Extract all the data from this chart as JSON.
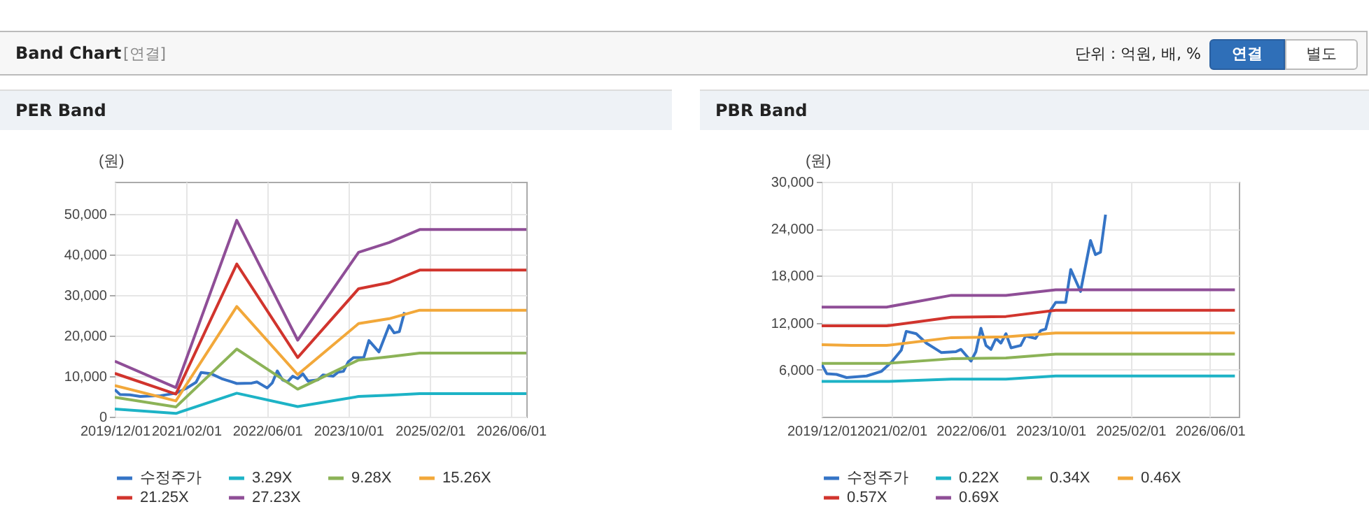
{
  "chart_data": [
    {
      "type": "other",
      "title": "Band Chart",
      "annotations": [
        "[연결]",
        "단위 : 억원, 배, %",
        "연결",
        "별도"
      ]
    },
    {
      "type": "line",
      "title": "PER Band",
      "ylabel": "(원)",
      "xlim": [
        "2019-12-01",
        "2026-09-01"
      ],
      "ylim": [
        0,
        58000
      ],
      "xticks": [
        {
          "value": "2019-12-01",
          "label": "2019/12/01"
        },
        {
          "value": "2021-02-01",
          "label": "2021/02/01"
        },
        {
          "value": "2022-06-01",
          "label": "2022/06/01"
        },
        {
          "value": "2023-10-01",
          "label": "2023/10/01"
        },
        {
          "value": "2025-02-01",
          "label": "2025/02/01"
        },
        {
          "value": "2026-06-01",
          "label": "2026/06/01"
        }
      ],
      "yticks": [
        0,
        {
          "value": 10000,
          "label": "10,000"
        },
        {
          "value": 20000,
          "label": "20,000"
        },
        {
          "value": 30000,
          "label": "30,000"
        },
        {
          "value": 40000,
          "label": "40,000"
        },
        {
          "value": 50000,
          "label": "50,000"
        }
      ],
      "grid": true,
      "legend": "bottom",
      "series": [
        {
          "name": "수정주가",
          "color": "#3574c6",
          "x": [
            "2019-12",
            "2020-01",
            "2020-03",
            "2020-05",
            "2020-09",
            "2020-12",
            "2021-02",
            "2021-04",
            "2021-05",
            "2021-07",
            "2021-09",
            "2021-11",
            "2021-12",
            "2022-03",
            "2022-04",
            "2022-06",
            "2022-07",
            "2022-08",
            "2022-09",
            "2022-10",
            "2022-11",
            "2022-12",
            "2023-01",
            "2023-02",
            "2023-04",
            "2023-05",
            "2023-07",
            "2023-08",
            "2023-09",
            "2023-10",
            "2023-11",
            "2024-01",
            "2024-02",
            "2024-04",
            "2024-06",
            "2024-07",
            "2024-08",
            "2024-09"
          ],
          "values": [
            6700,
            5500,
            5400,
            5000,
            5200,
            5800,
            7000,
            8500,
            10900,
            10600,
            9400,
            8600,
            8200,
            8300,
            8600,
            7100,
            8300,
            11300,
            9100,
            8600,
            10000,
            9400,
            10600,
            8800,
            9100,
            10300,
            10000,
            11000,
            11200,
            13600,
            14600,
            14600,
            18800,
            16000,
            22500,
            20700,
            21000,
            25800
          ]
        },
        {
          "name": "3.29X",
          "color": "#1db3c6",
          "x": [
            "2019-12",
            "2020-12",
            "2021-12",
            "2022-12",
            "2023-12",
            "2024-06",
            "2024-12",
            "2026-09"
          ],
          "values": [
            1900,
            800,
            5800,
            2500,
            5000,
            5300,
            5700,
            5700
          ]
        },
        {
          "name": "9.28X",
          "color": "#8cb357",
          "x": [
            "2019-12",
            "2020-12",
            "2021-12",
            "2022-12",
            "2023-12",
            "2024-06",
            "2024-12",
            "2026-09"
          ],
          "values": [
            4800,
            2400,
            16700,
            6800,
            14000,
            14800,
            15700,
            15700
          ]
        },
        {
          "name": "15.26X",
          "color": "#f2a83a",
          "x": [
            "2019-12",
            "2020-12",
            "2021-12",
            "2022-12",
            "2023-12",
            "2024-06",
            "2024-12",
            "2026-09"
          ],
          "values": [
            7700,
            3900,
            27200,
            10400,
            23000,
            24200,
            26300,
            26300
          ]
        },
        {
          "name": "21.25X",
          "color": "#d1342d",
          "x": [
            "2019-12",
            "2020-12",
            "2021-12",
            "2022-12",
            "2023-12",
            "2024-06",
            "2024-12",
            "2026-09"
          ],
          "values": [
            10700,
            5600,
            37700,
            14600,
            31600,
            33100,
            36200,
            36200
          ]
        },
        {
          "name": "27.23X",
          "color": "#8f4e97",
          "x": [
            "2019-12",
            "2020-12",
            "2021-12",
            "2022-12",
            "2023-12",
            "2024-06",
            "2024-12",
            "2026-09"
          ],
          "values": [
            13700,
            7200,
            48500,
            18900,
            40600,
            43000,
            46200,
            46200
          ]
        }
      ]
    },
    {
      "type": "line",
      "title": "PBR Band",
      "ylabel": "(원)",
      "xlim": [
        "2019-12-01",
        "2026-11-25"
      ],
      "ylim": [
        0,
        30000
      ],
      "xticks": [
        {
          "value": "2019-12-01",
          "label": "2019/12/01"
        },
        {
          "value": "2021-02-01",
          "label": "2021/02/01"
        },
        {
          "value": "2022-06-01",
          "label": "2022/06/01"
        },
        {
          "value": "2023-10-01",
          "label": "2023/10/01"
        },
        {
          "value": "2025-02-01",
          "label": "2025/02/01"
        },
        {
          "value": "2026-06-01",
          "label": "2026/06/01"
        }
      ],
      "yticks": [
        {
          "value": 6000,
          "label": "6,000"
        },
        {
          "value": 12000,
          "label": "12,000"
        },
        {
          "value": 18000,
          "label": "18,000"
        },
        {
          "value": 24000,
          "label": "24,000"
        },
        {
          "value": 30000,
          "label": "30,000"
        }
      ],
      "grid": true,
      "legend": "bottom",
      "series": [
        {
          "name": "수정주가",
          "color": "#3574c6",
          "x": [
            "2019-12",
            "2020-01",
            "2020-03",
            "2020-05",
            "2020-09",
            "2020-12",
            "2021-02",
            "2021-04",
            "2021-05",
            "2021-07",
            "2021-09",
            "2021-11",
            "2021-12",
            "2022-03",
            "2022-04",
            "2022-06",
            "2022-07",
            "2022-08",
            "2022-09",
            "2022-10",
            "2022-11",
            "2022-12",
            "2023-01",
            "2023-02",
            "2023-04",
            "2023-05",
            "2023-07",
            "2023-08",
            "2023-09",
            "2023-10",
            "2023-11",
            "2024-01",
            "2024-02",
            "2024-04",
            "2024-06",
            "2024-07",
            "2024-08",
            "2024-09"
          ],
          "values": [
            6700,
            5500,
            5400,
            5000,
            5200,
            5800,
            7000,
            8500,
            10900,
            10600,
            9400,
            8600,
            8200,
            8300,
            8600,
            7100,
            8300,
            11300,
            9100,
            8600,
            10000,
            9400,
            10600,
            8800,
            9100,
            10300,
            10000,
            11000,
            11200,
            13600,
            14600,
            14600,
            18800,
            16000,
            22500,
            20700,
            21000,
            25800
          ]
        },
        {
          "name": "0.22X",
          "color": "#1db3c6",
          "x": [
            "2019-12",
            "2021-01",
            "2022-02",
            "2023-01",
            "2023-11",
            "2026-11"
          ],
          "values": [
            4500,
            4500,
            4800,
            4800,
            5200,
            5200
          ]
        },
        {
          "name": "0.34X",
          "color": "#8cb357",
          "x": [
            "2019-12",
            "2021-01",
            "2022-02",
            "2023-01",
            "2023-11",
            "2026-11"
          ],
          "values": [
            6800,
            6800,
            7400,
            7500,
            8000,
            8000
          ]
        },
        {
          "name": "0.46X",
          "color": "#f2a83a",
          "x": [
            "2019-12",
            "2020-06",
            "2021-01",
            "2022-02",
            "2023-01",
            "2023-11",
            "2026-11"
          ],
          "values": [
            9200,
            9100,
            9100,
            10100,
            10200,
            10700,
            10700
          ]
        },
        {
          "name": "0.57X",
          "color": "#d1342d",
          "x": [
            "2019-12",
            "2021-01",
            "2022-02",
            "2023-01",
            "2023-11",
            "2026-11"
          ],
          "values": [
            11600,
            11600,
            12700,
            12800,
            13600,
            13600
          ]
        },
        {
          "name": "0.69X",
          "color": "#8f4e97",
          "x": [
            "2019-12",
            "2021-01",
            "2022-02",
            "2023-01",
            "2023-11",
            "2026-11"
          ],
          "values": [
            14000,
            14000,
            15500,
            15500,
            16200,
            16200
          ]
        }
      ]
    }
  ]
}
